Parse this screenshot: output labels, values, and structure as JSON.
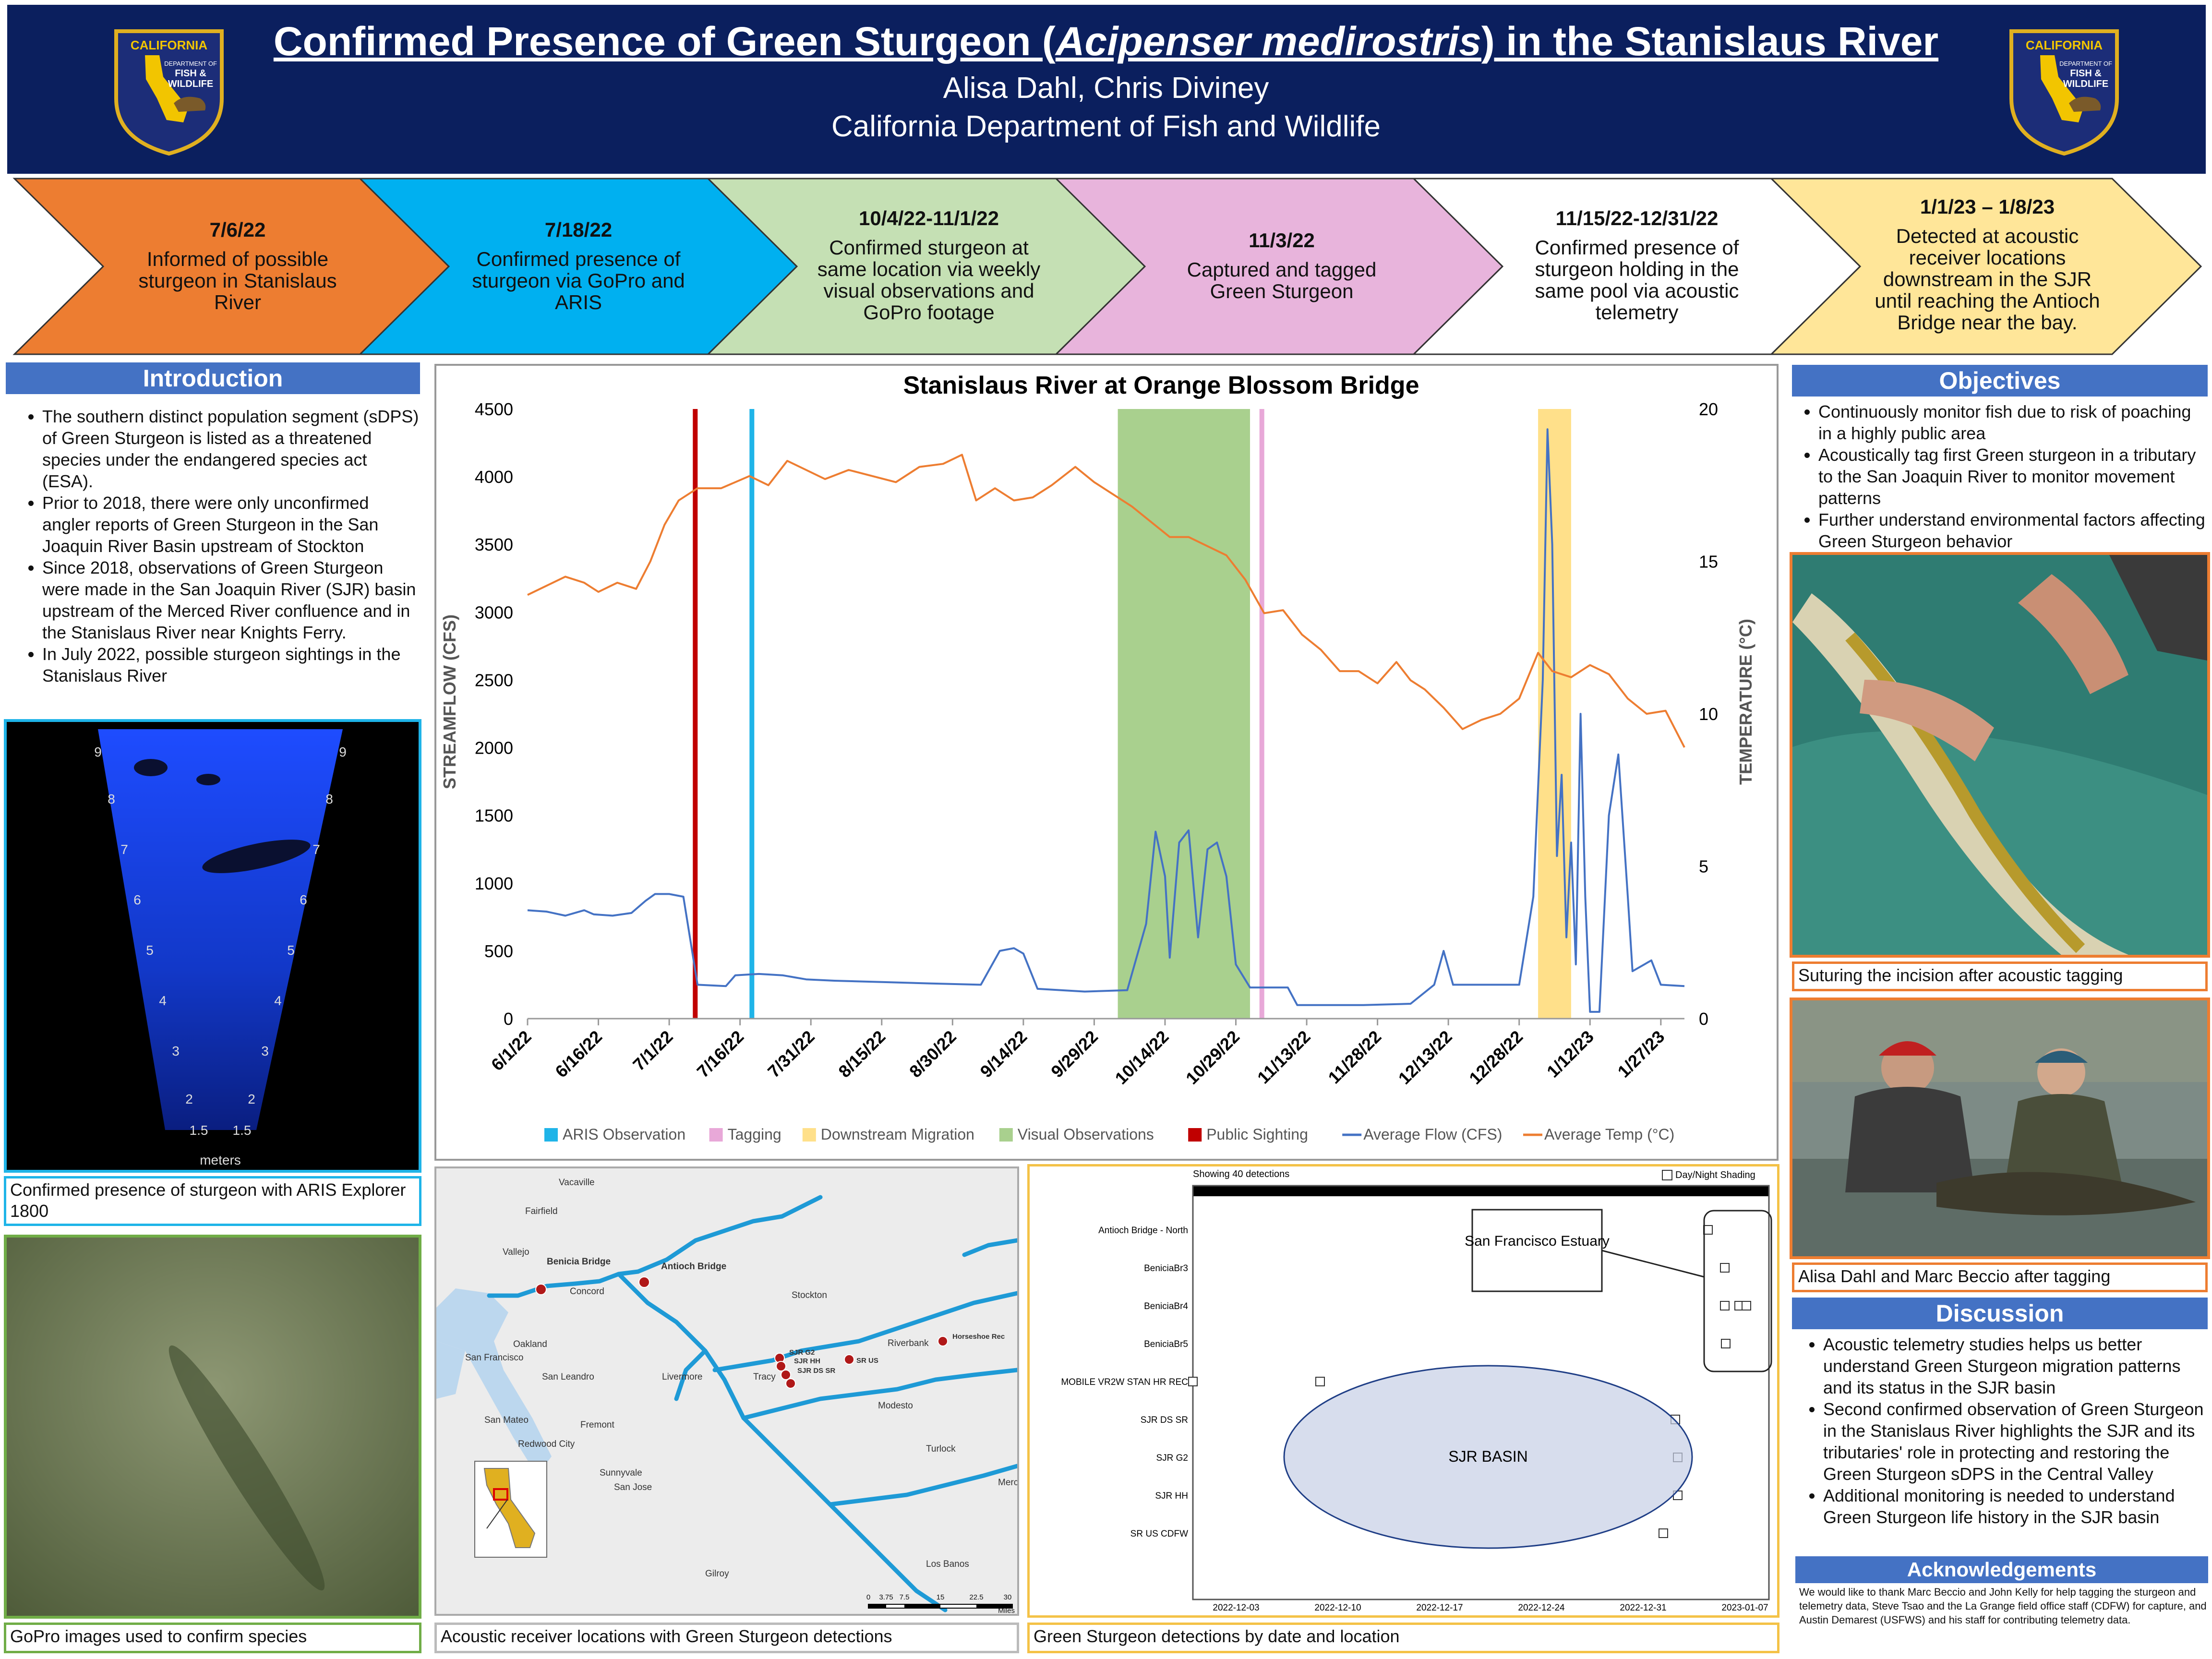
{
  "header": {
    "title_pre": "Confirmed Presence of Green Sturgeon (",
    "title_species": "Acipenser medirostris",
    "title_post": ") in the Stanislaus River",
    "authors": "Alisa Dahl, Chris Diviney",
    "affiliation": "California Department of Fish and Wildlife",
    "logo_top": "CALIFORNIA",
    "logo_dept": "DEPARTMENT OF",
    "logo_agency1": "FISH &",
    "logo_agency2": "WILDLIFE"
  },
  "timeline": [
    {
      "date": "7/6/22",
      "text": "Informed of possible sturgeon in Stanislaus River",
      "color": "#ed7d31"
    },
    {
      "date": "7/18/22",
      "text": "Confirmed presence of sturgeon via GoPro and ARIS",
      "color": "#00b0f0"
    },
    {
      "date": "10/4/22-11/1/22",
      "text": "Confirmed sturgeon at same location via weekly visual observations and GoPro footage",
      "color": "#c5e0b4"
    },
    {
      "date": "11/3/22",
      "text": "Captured and tagged Green Sturgeon",
      "color": "#e8b4dc"
    },
    {
      "date": "11/15/22-12/31/22",
      "text": "Confirmed presence of sturgeon holding in the same pool via acoustic telemetry",
      "color": "#ffffff"
    },
    {
      "date": "1/1/23 – 1/8/23",
      "text": "Detected at acoustic receiver locations downstream in the SJR until reaching the Antioch Bridge near the bay.",
      "color": "#ffe699"
    }
  ],
  "introduction": {
    "heading": "Introduction",
    "bullets": [
      "The southern distinct population segment (sDPS) of Green Sturgeon is listed as a threatened species under the endangered species act (ESA).",
      "Prior to 2018, there were only unconfirmed angler reports of Green Sturgeon in the San Joaquin River Basin upstream of Stockton",
      "Since 2018, observations of Green Sturgeon were made in the San Joaquin River (SJR) basin upstream of the Merced River confluence and in the Stanislaus River near Knights Ferry.",
      "In July 2022, possible sturgeon sightings in the Stanislaus River"
    ]
  },
  "aris": {
    "caption": "Confirmed presence of sturgeon with ARIS Explorer 1800",
    "ticks_left": [
      "9",
      "8",
      "7",
      "6",
      "5",
      "4",
      "3",
      "2",
      "1.5"
    ],
    "ticks_right": [
      "9",
      "8",
      "7",
      "6",
      "5",
      "4",
      "3",
      "2",
      "1.5"
    ],
    "unit": "meters"
  },
  "gopro": {
    "caption": "GoPro images used to confirm species"
  },
  "chart_data": {
    "type": "line",
    "title": "Stanislaus River at Orange Blossom Bridge",
    "ylabel": "STREAMFLOW (CFS)",
    "y2label": "TEMPERATURE (°C)",
    "ylim": [
      0,
      4500
    ],
    "y2lim": [
      0,
      20
    ],
    "yticks": [
      "0",
      "500",
      "1000",
      "1500",
      "2000",
      "2500",
      "3000",
      "3500",
      "4000",
      "4500"
    ],
    "y2ticks": [
      "0",
      "5",
      "10",
      "15",
      "20"
    ],
    "xticks": [
      "6/1/22",
      "6/16/22",
      "7/1/22",
      "7/16/22",
      "7/31/22",
      "8/15/22",
      "8/30/22",
      "9/14/22",
      "9/29/22",
      "10/14/22",
      "10/29/22",
      "11/13/22",
      "11/28/22",
      "12/13/22",
      "12/28/22",
      "1/12/23",
      "1/27/23"
    ],
    "x_range": [
      "6/1/22",
      "2/1/23"
    ],
    "legend_position": "bottom",
    "legend": [
      {
        "label": "ARIS Observation",
        "color": "#1fb4e8",
        "kind": "bar"
      },
      {
        "label": "Tagging",
        "color": "#e8a8d8",
        "kind": "bar"
      },
      {
        "label": "Downstream Migration",
        "color": "#ffe08a",
        "kind": "bar"
      },
      {
        "label": "Visual Observations",
        "color": "#a9d08e",
        "kind": "bar"
      },
      {
        "label": "Public Sighting",
        "color": "#c00000",
        "kind": "bar"
      },
      {
        "label": "Average Flow (CFS)",
        "color": "#4472c4",
        "kind": "line"
      },
      {
        "label": "Average Temp (°C)",
        "color": "#ed7d31",
        "kind": "line"
      }
    ],
    "events": [
      {
        "name": "Public Sighting",
        "start": "7/6/22",
        "end": "7/7/22"
      },
      {
        "name": "ARIS Observation",
        "start": "7/18/22",
        "end": "7/19/22"
      },
      {
        "name": "Visual Observations",
        "start": "10/4/22",
        "end": "11/1/22"
      },
      {
        "name": "Tagging",
        "start": "11/3/22",
        "end": "11/4/22"
      },
      {
        "name": "Downstream Migration",
        "start": "1/1/23",
        "end": "1/8/23"
      }
    ],
    "series": [
      {
        "name": "Average Flow (CFS)",
        "axis": "left",
        "points": [
          [
            "6/1/22",
            800
          ],
          [
            "6/5/22",
            790
          ],
          [
            "6/9/22",
            760
          ],
          [
            "6/13/22",
            800
          ],
          [
            "6/15/22",
            770
          ],
          [
            "6/19/22",
            760
          ],
          [
            "6/23/22",
            780
          ],
          [
            "6/26/22",
            870
          ],
          [
            "6/28/22",
            920
          ],
          [
            "7/1/22",
            920
          ],
          [
            "7/4/22",
            900
          ],
          [
            "7/7/22",
            250
          ],
          [
            "7/13/22",
            240
          ],
          [
            "7/15/22",
            320
          ],
          [
            "7/20/22",
            330
          ],
          [
            "7/25/22",
            320
          ],
          [
            "7/30/22",
            290
          ],
          [
            "8/5/22",
            280
          ],
          [
            "8/15/22",
            270
          ],
          [
            "8/25/22",
            260
          ],
          [
            "9/5/22",
            250
          ],
          [
            "9/9/22",
            500
          ],
          [
            "9/12/22",
            520
          ],
          [
            "9/14/22",
            480
          ],
          [
            "9/17/22",
            220
          ],
          [
            "9/27/22",
            200
          ],
          [
            "10/6/22",
            210
          ],
          [
            "10/10/22",
            700
          ],
          [
            "10/12/22",
            1380
          ],
          [
            "10/14/22",
            1050
          ],
          [
            "10/15/22",
            450
          ],
          [
            "10/17/22",
            1300
          ],
          [
            "10/19/22",
            1390
          ],
          [
            "10/21/22",
            600
          ],
          [
            "10/23/22",
            1250
          ],
          [
            "10/25/22",
            1300
          ],
          [
            "10/27/22",
            1050
          ],
          [
            "10/29/22",
            400
          ],
          [
            "11/1/22",
            230
          ],
          [
            "11/9/22",
            230
          ],
          [
            "11/11/22",
            100
          ],
          [
            "11/25/22",
            100
          ],
          [
            "12/5/22",
            110
          ],
          [
            "12/10/22",
            250
          ],
          [
            "12/12/22",
            500
          ],
          [
            "12/14/22",
            250
          ],
          [
            "12/28/22",
            250
          ],
          [
            "12/31/22",
            900
          ],
          [
            "1/2/23",
            2500
          ],
          [
            "1/3/23",
            4350
          ],
          [
            "1/4/23",
            3500
          ],
          [
            "1/5/23",
            1200
          ],
          [
            "1/6/23",
            1800
          ],
          [
            "1/7/23",
            600
          ],
          [
            "1/8/23",
            1300
          ],
          [
            "1/9/23",
            400
          ],
          [
            "1/10/23",
            2250
          ],
          [
            "1/11/23",
            900
          ],
          [
            "1/12/23",
            50
          ],
          [
            "1/14/23",
            50
          ],
          [
            "1/16/23",
            1500
          ],
          [
            "1/18/23",
            1950
          ],
          [
            "1/20/23",
            900
          ],
          [
            "1/21/23",
            350
          ],
          [
            "1/25/23",
            430
          ],
          [
            "1/27/23",
            250
          ],
          [
            "2/1/23",
            240
          ]
        ]
      },
      {
        "name": "Average Temp (°C)",
        "axis": "right",
        "points": [
          [
            "6/1/22",
            13.9
          ],
          [
            "6/5/22",
            14.2
          ],
          [
            "6/9/22",
            14.5
          ],
          [
            "6/13/22",
            14.3
          ],
          [
            "6/16/22",
            14.0
          ],
          [
            "6/20/22",
            14.3
          ],
          [
            "6/24/22",
            14.1
          ],
          [
            "6/27/22",
            15.0
          ],
          [
            "6/30/22",
            16.2
          ],
          [
            "7/3/22",
            17.0
          ],
          [
            "7/7/22",
            17.4
          ],
          [
            "7/12/22",
            17.4
          ],
          [
            "7/18/22",
            17.8
          ],
          [
            "7/22/22",
            17.5
          ],
          [
            "7/26/22",
            18.3
          ],
          [
            "7/30/22",
            18.0
          ],
          [
            "8/3/22",
            17.7
          ],
          [
            "8/8/22",
            18.0
          ],
          [
            "8/13/22",
            17.8
          ],
          [
            "8/18/22",
            17.6
          ],
          [
            "8/23/22",
            18.1
          ],
          [
            "8/28/22",
            18.2
          ],
          [
            "9/1/22",
            18.5
          ],
          [
            "9/4/22",
            17.0
          ],
          [
            "9/8/22",
            17.4
          ],
          [
            "9/12/22",
            17.0
          ],
          [
            "9/16/22",
            17.1
          ],
          [
            "9/20/22",
            17.5
          ],
          [
            "9/25/22",
            18.1
          ],
          [
            "9/29/22",
            17.6
          ],
          [
            "10/3/22",
            17.2
          ],
          [
            "10/7/22",
            16.8
          ],
          [
            "10/11/22",
            16.3
          ],
          [
            "10/15/22",
            15.8
          ],
          [
            "10/19/22",
            15.8
          ],
          [
            "10/23/22",
            15.5
          ],
          [
            "10/27/22",
            15.2
          ],
          [
            "10/31/22",
            14.4
          ],
          [
            "11/4/22",
            13.3
          ],
          [
            "11/8/22",
            13.4
          ],
          [
            "11/12/22",
            12.6
          ],
          [
            "11/16/22",
            12.1
          ],
          [
            "11/20/22",
            11.4
          ],
          [
            "11/24/22",
            11.4
          ],
          [
            "11/28/22",
            11.0
          ],
          [
            "12/2/22",
            11.7
          ],
          [
            "12/5/22",
            11.1
          ],
          [
            "12/8/22",
            10.8
          ],
          [
            "12/12/22",
            10.2
          ],
          [
            "12/16/22",
            9.5
          ],
          [
            "12/20/22",
            9.8
          ],
          [
            "12/24/22",
            10.0
          ],
          [
            "12/28/22",
            10.5
          ],
          [
            "1/1/23",
            12.0
          ],
          [
            "1/4/23",
            11.4
          ],
          [
            "1/8/23",
            11.2
          ],
          [
            "1/12/23",
            11.6
          ],
          [
            "1/16/23",
            11.3
          ],
          [
            "1/20/23",
            10.5
          ],
          [
            "1/24/23",
            10.0
          ],
          [
            "1/28/23",
            10.1
          ],
          [
            "2/1/23",
            8.9
          ]
        ]
      }
    ]
  },
  "objectives": {
    "heading": "Objectives",
    "bullets": [
      "Continuously monitor fish due to risk of poaching in a highly public area",
      "Acoustically tag first Green sturgeon in a tributary to the San Joaquin River to monitor movement patterns",
      "Further understand environmental factors affecting Green Sturgeon behavior"
    ]
  },
  "photo1": {
    "caption": "Suturing the incision after acoustic tagging"
  },
  "photo2": {
    "caption": "Alisa Dahl and Marc Beccio after tagging"
  },
  "discussion": {
    "heading": "Discussion",
    "bullets": [
      "Acoustic telemetry studies helps us better understand Green Sturgeon migration patterns and its status in the SJR basin",
      "Second confirmed observation of Green Sturgeon in the Stanislaus River highlights the SJR and its tributaries' role in protecting and restoring the Green Sturgeon sDPS in the Central Valley",
      "Additional monitoring is needed to understand Green Sturgeon life history in the SJR basin"
    ]
  },
  "acknowledgements": {
    "heading": "Acknowledgements",
    "text": "We would like to thank Marc Beccio and John Kelly for help tagging the sturgeon and telemetry data, Steve Tsao and the La Grange field office staff (CDFW) for capture, and Austin Demarest (USFWS) and his staff for contributing telemetry data."
  },
  "map": {
    "caption": "Acoustic receiver locations with Green Sturgeon detections",
    "places": [
      "Vacaville",
      "Fairfield",
      "Vallejo",
      "Benicia Bridge",
      "Concord",
      "Antioch Bridge",
      "Stockton",
      "Oakland",
      "San Francisco",
      "San Leandro",
      "Livermore",
      "Tracy",
      "SJR G2",
      "SJR HH",
      "SJR DS SR",
      "SR US",
      "Riverbank",
      "Horseshoe Rec",
      "Modesto",
      "San Mateo",
      "Fremont",
      "Redwood City",
      "Sunnyvale",
      "San Jose",
      "Turlock",
      "Merced",
      "Gilroy",
      "Los Banos"
    ],
    "scale": [
      "0",
      "3.75",
      "7.5",
      "15",
      "22.5",
      "30"
    ],
    "scale_unit": "Miles"
  },
  "detections": {
    "caption": "Green Sturgeon detections by date and location",
    "header_left": "Showing 40 detections",
    "header_right": "Day/Night Shading",
    "stations": [
      "Antioch Bridge - North",
      "BeniciaBr3",
      "BeniciaBr4",
      "BeniciaBr5",
      "MOBILE VR2W STAN HR REC",
      "SJR DS SR",
      "SJR G2",
      "SJR HH",
      "SR US CDFW"
    ],
    "xticks": [
      "2022-12-03",
      "2022-12-10",
      "2022-12-17",
      "2022-12-24",
      "2022-12-31",
      "2023-01-07"
    ],
    "estuary_label": "San Francisco Estuary",
    "basin_label": "SJR BASIN"
  }
}
